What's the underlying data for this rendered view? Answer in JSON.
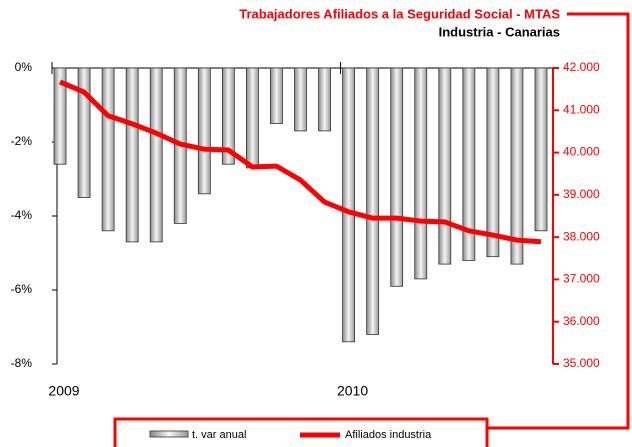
{
  "chart_data": {
    "type": "bar_line",
    "title": "Trabajadores Afiliados a la Seguridad Social - MTAS",
    "subtitle": "Industria - Canarias",
    "categories": [
      "2009",
      null,
      null,
      null,
      null,
      null,
      null,
      null,
      null,
      null,
      null,
      null,
      "2010",
      null,
      null,
      null,
      null,
      null,
      null,
      null,
      null
    ],
    "series": [
      {
        "name": "t. var anual",
        "color": "#c0c0c0",
        "values": [
          -2.6,
          -3.5,
          -4.4,
          -4.7,
          -4.7,
          -4.2,
          -3.4,
          -2.6,
          -2.7,
          -1.5,
          -1.7,
          -1.7,
          -7.4,
          -7.2,
          -5.9,
          -5.7,
          -5.3,
          -5.2,
          -5.1,
          -5.3,
          -4.4
        ]
      },
      {
        "name": "Afiliados industria",
        "color": "#ff0000",
        "axis": "y2",
        "values": [
          41670,
          41430,
          40870,
          40680,
          40460,
          40200,
          40080,
          40060,
          39660,
          39680,
          39350,
          38830,
          38600,
          38450,
          38450,
          38380,
          38360,
          38150,
          38050,
          37930,
          37890
        ]
      }
    ],
    "ylim": [
      -8,
      0
    ],
    "yticks": [
      {
        "value": 0,
        "label": "0%"
      },
      {
        "value": -2,
        "label": "-2%"
      },
      {
        "value": -4,
        "label": "-4%"
      },
      {
        "value": -6,
        "label": "-6%"
      },
      {
        "value": -8,
        "label": "-8%"
      }
    ],
    "y2lim": [
      35000,
      42000
    ],
    "y2ticks": [
      {
        "value": 42000,
        "label": "42.000"
      },
      {
        "value": 41000,
        "label": "41.000"
      },
      {
        "value": 40000,
        "label": "40.000"
      },
      {
        "value": 39000,
        "label": "39.000"
      },
      {
        "value": 38000,
        "label": "38.000"
      },
      {
        "value": 37000,
        "label": "37.000"
      },
      {
        "value": 36000,
        "label": "36.000"
      },
      {
        "value": 35000,
        "label": "35.000"
      }
    ],
    "legend": "bottom"
  }
}
